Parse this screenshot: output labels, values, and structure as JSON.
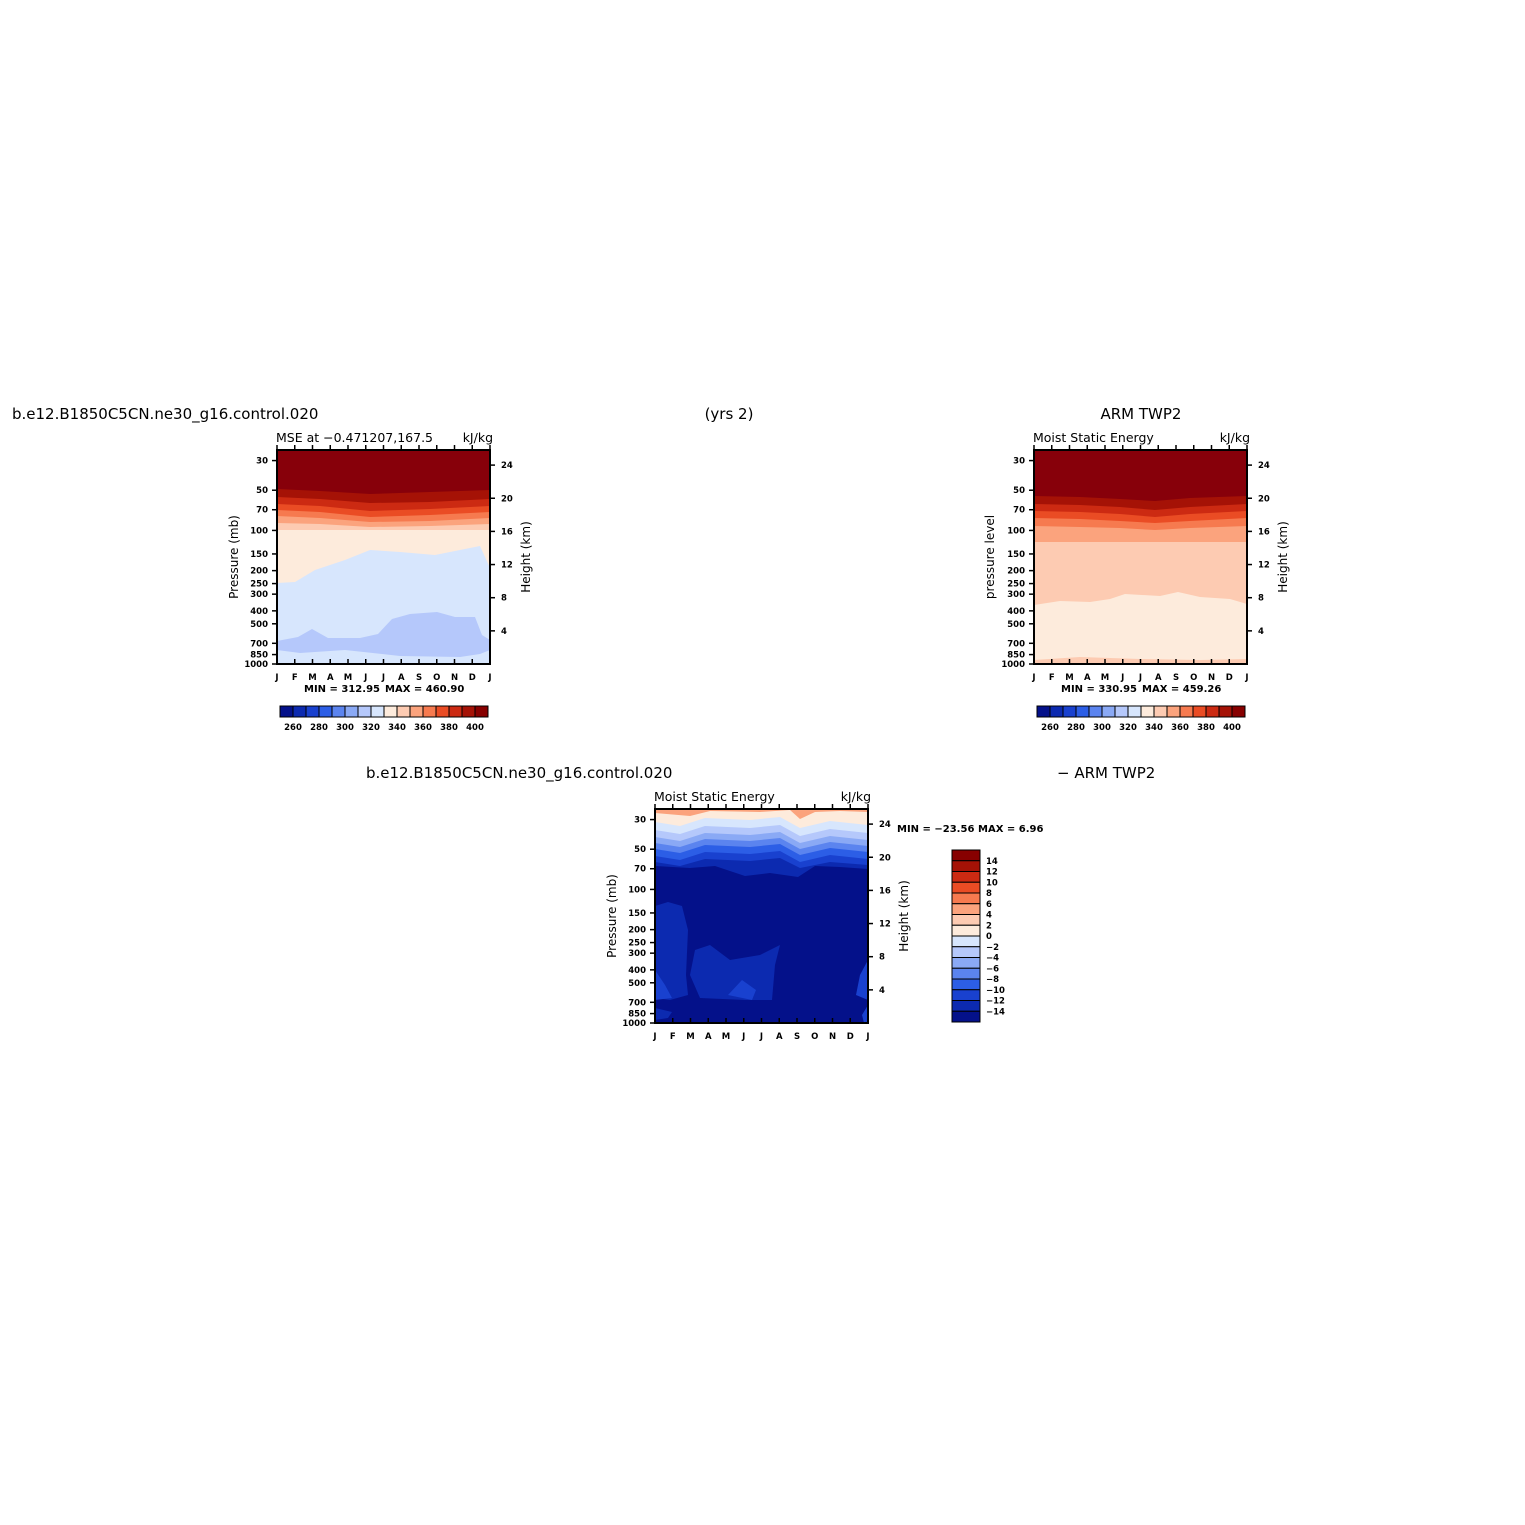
{
  "titles": {
    "model_case": "b.e12.B1850C5CN.ne30_g16.control.020",
    "years": "(yrs 2)",
    "obs_name": "ARM TWP2",
    "diff_case": "b.e12.B1850C5CN.ne30_g16.control.020",
    "diff_obs": "− ARM TWP2"
  },
  "chart_data": [
    {
      "id": "model",
      "type": "heatmap",
      "title": "MSE at −0.471207,167.5",
      "units": "kJ/kg",
      "ylabel": "Pressure (mb)",
      "y2label": "Height (km)",
      "x_ticks": [
        "J",
        "F",
        "M",
        "A",
        "M",
        "J",
        "J",
        "A",
        "S",
        "O",
        "N",
        "D",
        "J"
      ],
      "y_ticks": [
        30,
        50,
        70,
        100,
        150,
        200,
        250,
        300,
        400,
        500,
        700,
        850,
        1000
      ],
      "y_range": [
        1000,
        25
      ],
      "y2_ticks": [
        24,
        20,
        16,
        12,
        8,
        4
      ],
      "min": "312.95",
      "max": "460.90",
      "colorbar": {
        "labels": [
          "260",
          "280",
          "300",
          "320",
          "340",
          "360",
          "380",
          "400"
        ],
        "colors": [
          "#04118a",
          "#0c2ab0",
          "#1941cf",
          "#2c5ee6",
          "#5b84ef",
          "#8aa9f5",
          "#b5c8fb",
          "#d7e6fd",
          "#fdebdc",
          "#fdcbb2",
          "#fba37d",
          "#f67a4f",
          "#ea4c24",
          "#cc2a12",
          "#a51206",
          "#870000"
        ]
      }
    },
    {
      "id": "obs",
      "type": "heatmap",
      "title": "Moist Static Energy",
      "units": "kJ/kg",
      "ylabel": "pressure level",
      "y2label": "Height (km)",
      "x_ticks": [
        "J",
        "F",
        "M",
        "A",
        "M",
        "J",
        "J",
        "A",
        "S",
        "O",
        "N",
        "D",
        "J"
      ],
      "y_ticks": [
        30,
        50,
        70,
        100,
        150,
        200,
        250,
        300,
        400,
        500,
        700,
        850,
        1000
      ],
      "y_range": [
        1000,
        25
      ],
      "y2_ticks": [
        24,
        20,
        16,
        12,
        8,
        4
      ],
      "min": "330.95",
      "max": "459.26",
      "colorbar": {
        "labels": [
          "260",
          "280",
          "300",
          "320",
          "340",
          "360",
          "380",
          "400"
        ],
        "colors": [
          "#04118a",
          "#0c2ab0",
          "#1941cf",
          "#2c5ee6",
          "#5b84ef",
          "#8aa9f5",
          "#b5c8fb",
          "#d7e6fd",
          "#fdebdc",
          "#fdcbb2",
          "#fba37d",
          "#f67a4f",
          "#ea4c24",
          "#cc2a12",
          "#a51206",
          "#870000"
        ]
      }
    },
    {
      "id": "diff",
      "type": "heatmap",
      "title": "Moist Static Energy",
      "units": "kJ/kg",
      "ylabel": "Pressure (mb)",
      "y2label": "Height (km)",
      "x_ticks": [
        "J",
        "F",
        "M",
        "A",
        "M",
        "J",
        "J",
        "A",
        "S",
        "O",
        "N",
        "D",
        "J"
      ],
      "y_ticks": [
        30,
        50,
        70,
        100,
        150,
        200,
        250,
        300,
        400,
        500,
        700,
        850,
        1000
      ],
      "y_range": [
        1000,
        25
      ],
      "y2_ticks": [
        24,
        20,
        16,
        12,
        8,
        4
      ],
      "min": "−23.56",
      "max": "6.96",
      "colorbar": {
        "labels": [
          "14",
          "12",
          "10",
          "8",
          "6",
          "4",
          "2",
          "0",
          "−2",
          "−4",
          "−6",
          "−8",
          "−10",
          "−12",
          "−14"
        ],
        "colors": [
          "#870000",
          "#a51206",
          "#cc2a12",
          "#ea4c24",
          "#f67a4f",
          "#fba37d",
          "#fdcbb2",
          "#fdebdc",
          "#d7e6fd",
          "#b5c8fb",
          "#8aa9f5",
          "#5b84ef",
          "#2c5ee6",
          "#1941cf",
          "#0c2ab0",
          "#04118a"
        ]
      }
    }
  ]
}
